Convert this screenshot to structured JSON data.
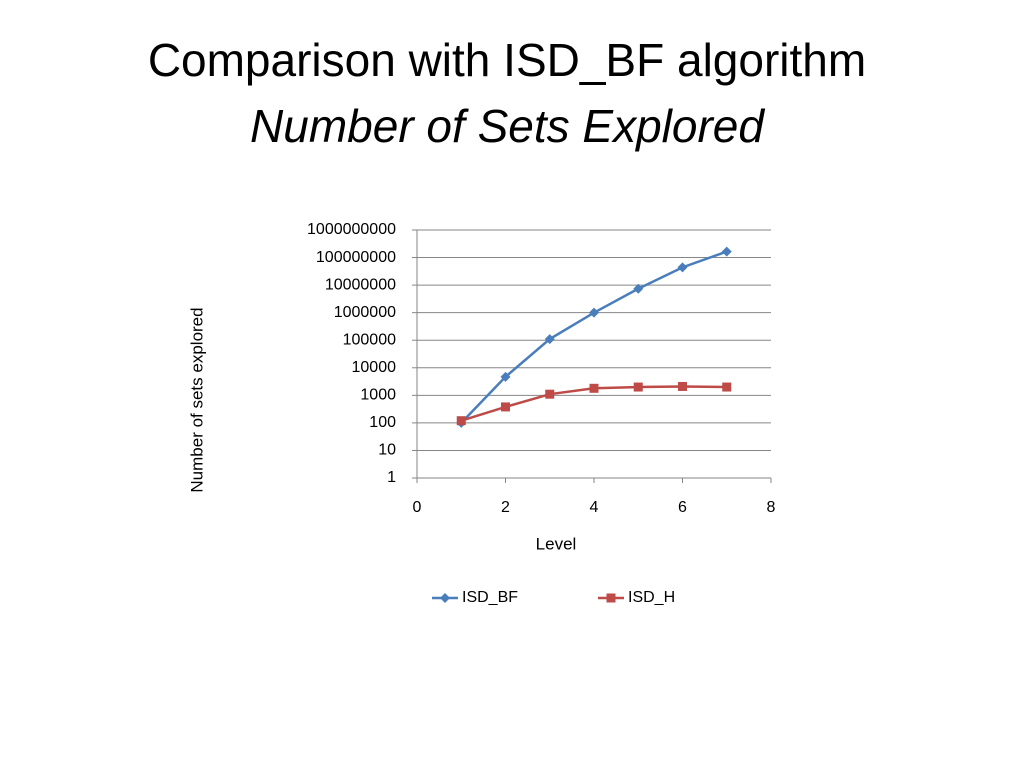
{
  "chart_data": {
    "type": "line",
    "title": "Comparison with ISD_BF algorithm",
    "subtitle": "Number of Sets Explored",
    "x_label": "Level",
    "y_label": "Number of sets explored",
    "x": [
      1,
      2,
      3,
      4,
      5,
      6,
      7
    ],
    "series": [
      {
        "name": "ISD_BF",
        "color": "#4a7ebb",
        "marker": "diamond",
        "values": [
          100,
          4700,
          110000,
          1000000,
          7400000,
          44000000,
          165000000
        ]
      },
      {
        "name": "ISD_H",
        "color": "#be4b48",
        "marker": "square",
        "values": [
          120,
          380,
          1100,
          1800,
          2000,
          2100,
          2000
        ]
      }
    ],
    "xlim": [
      0,
      8
    ],
    "xticks": [
      0,
      2,
      4,
      6,
      8
    ],
    "ylim": [
      1,
      1000000000
    ],
    "yticks": [
      1,
      10,
      100,
      1000,
      10000,
      100000,
      1000000,
      10000000,
      100000000,
      1000000000
    ],
    "log_y": true,
    "grid": true,
    "legend": "bottom"
  }
}
